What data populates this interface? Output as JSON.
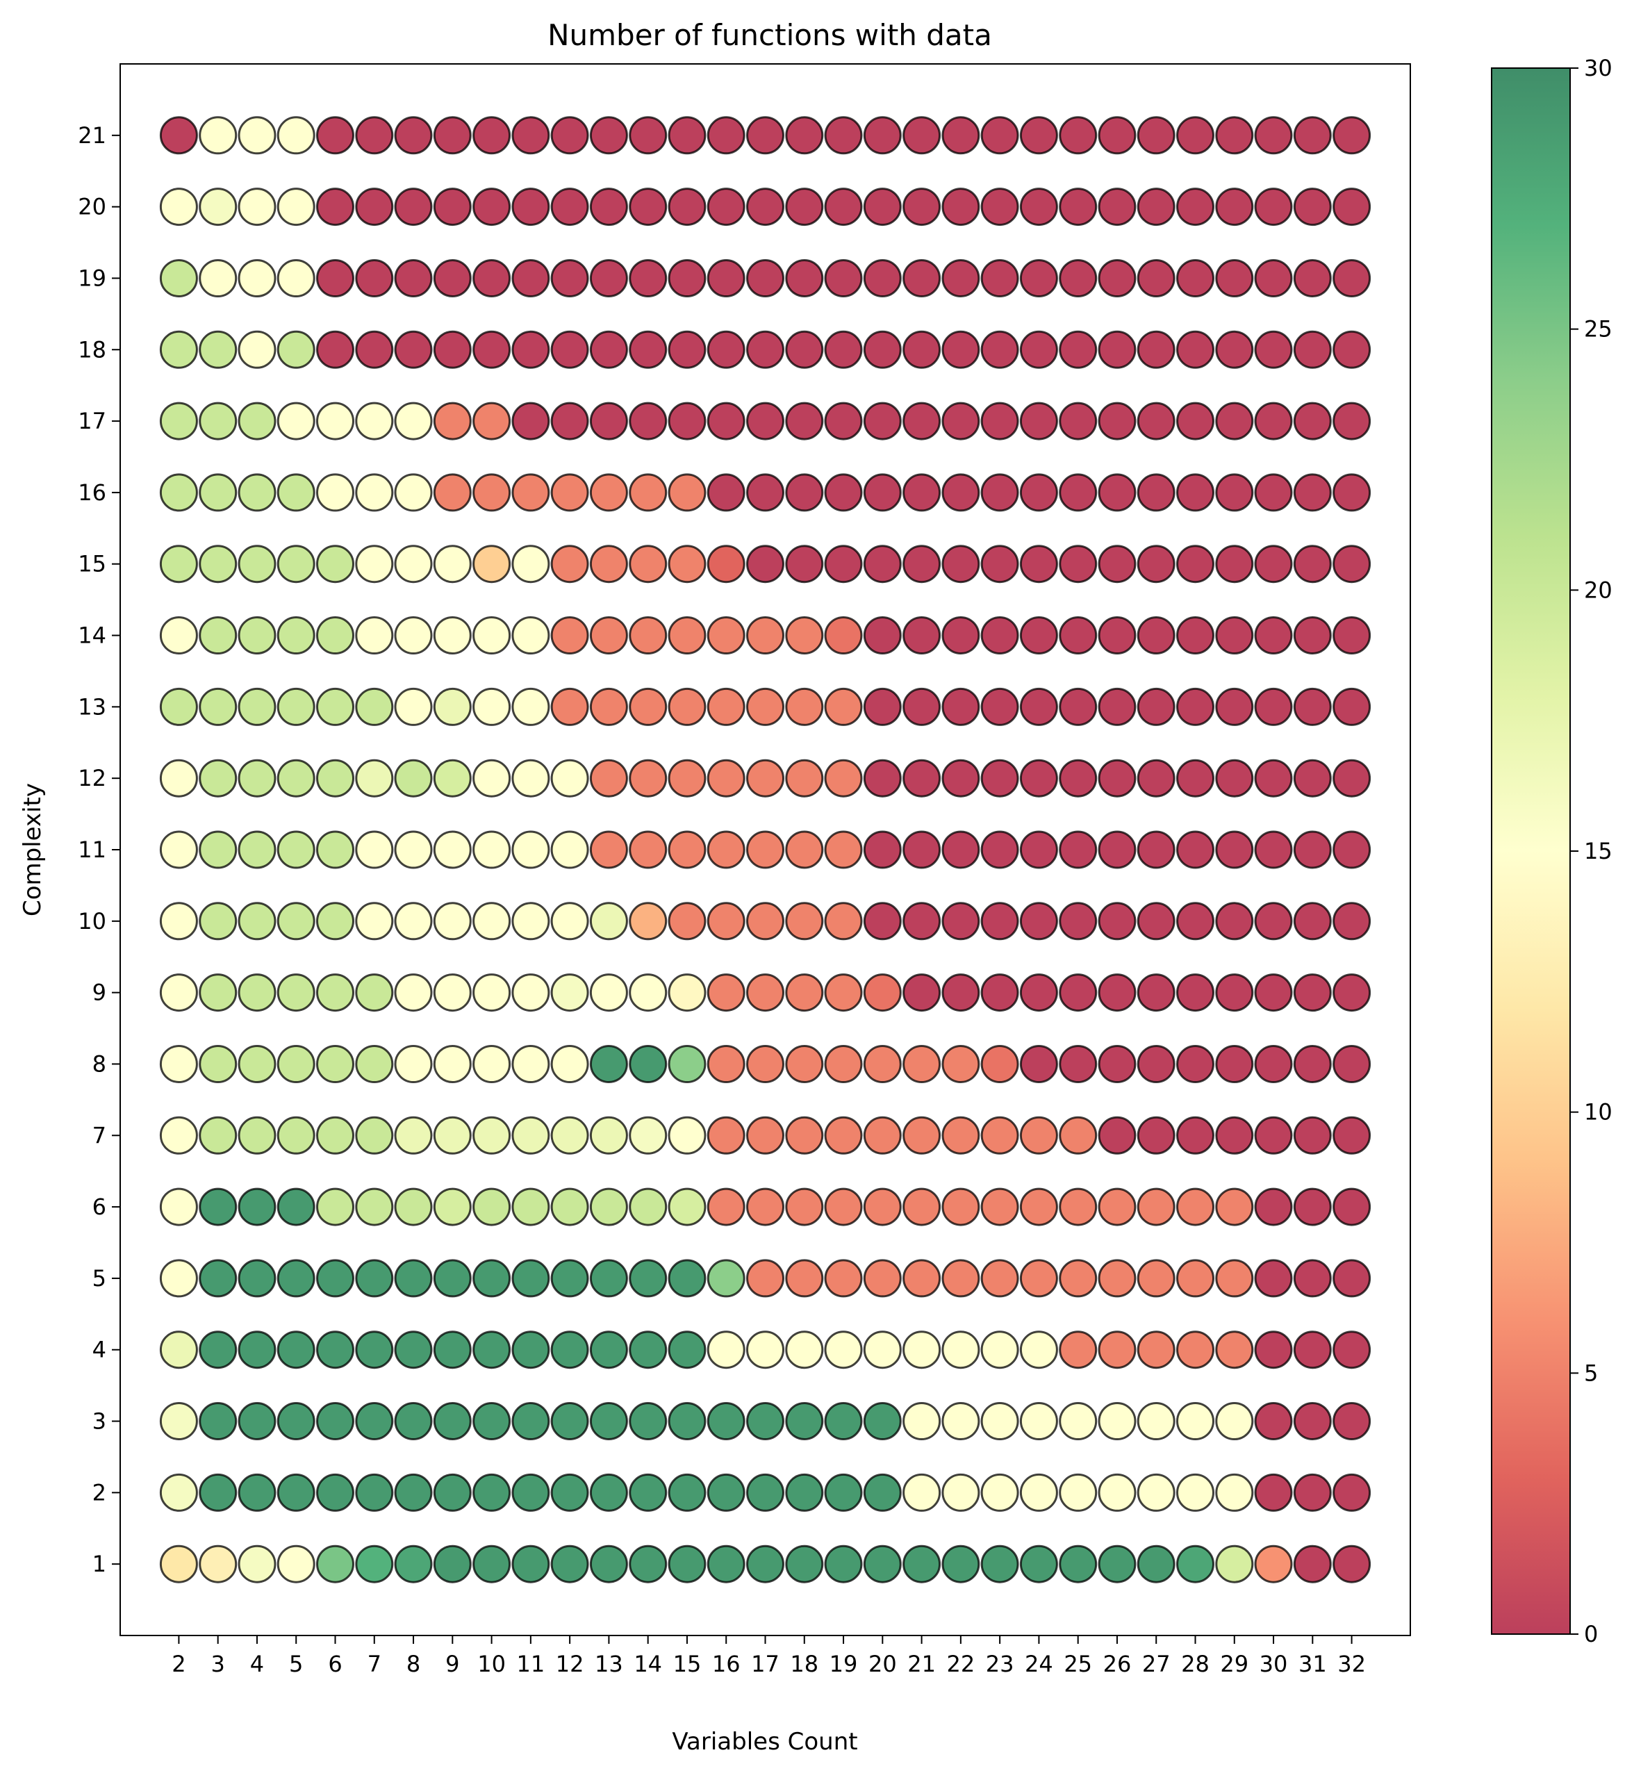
{
  "chart_data": {
    "type": "scatter",
    "title": "Number of functions with data",
    "xlabel": "Variables Count",
    "ylabel": "Complexity",
    "x": [
      2,
      3,
      4,
      5,
      6,
      7,
      8,
      9,
      10,
      11,
      12,
      13,
      14,
      15,
      16,
      17,
      18,
      19,
      20,
      21,
      22,
      23,
      24,
      25,
      26,
      27,
      28,
      29,
      30,
      31,
      32
    ],
    "y": [
      1,
      2,
      3,
      4,
      5,
      6,
      7,
      8,
      9,
      10,
      11,
      12,
      13,
      14,
      15,
      16,
      17,
      18,
      19,
      20,
      21
    ],
    "xlim": [
      0.5,
      33.5
    ],
    "ylim": [
      0,
      22
    ],
    "colormap": "RdYlGn",
    "colorbar": {
      "min": 0,
      "max": 30,
      "ticks": [
        0,
        5,
        10,
        15,
        20,
        25,
        30
      ]
    },
    "grid": false,
    "values": [
      [
        12,
        13,
        16,
        15,
        25,
        27,
        28,
        29,
        29,
        29,
        29,
        29,
        29,
        29,
        29,
        29,
        29,
        29,
        29,
        29,
        29,
        29,
        29,
        29,
        29,
        29,
        28,
        19,
        6,
        0,
        0
      ],
      [
        16,
        29,
        29,
        29,
        29,
        29,
        29,
        29,
        29,
        29,
        29,
        29,
        29,
        29,
        29,
        29,
        29,
        29,
        29,
        15,
        15,
        15,
        15,
        15,
        15,
        15,
        15,
        15,
        0,
        0,
        0
      ],
      [
        16,
        29,
        29,
        29,
        29,
        29,
        29,
        29,
        29,
        29,
        29,
        29,
        29,
        29,
        29,
        29,
        29,
        29,
        29,
        15,
        15,
        15,
        15,
        15,
        15,
        15,
        15,
        15,
        0,
        0,
        0
      ],
      [
        17,
        29,
        29,
        29,
        29,
        29,
        29,
        29,
        29,
        29,
        29,
        29,
        29,
        29,
        15,
        15,
        15,
        15,
        15,
        15,
        15,
        15,
        15,
        5,
        5,
        5,
        5,
        5,
        0,
        0,
        0
      ],
      [
        15,
        29,
        29,
        29,
        29,
        29,
        29,
        29,
        29,
        29,
        29,
        29,
        29,
        29,
        24,
        5,
        5,
        5,
        5,
        5,
        5,
        5,
        5,
        5,
        5,
        5,
        5,
        5,
        0,
        0,
        0
      ],
      [
        15,
        29,
        29,
        29,
        20,
        20,
        20,
        19,
        20,
        20,
        20,
        20,
        20,
        19,
        5,
        5,
        5,
        5,
        5,
        5,
        5,
        5,
        5,
        5,
        5,
        5,
        5,
        5,
        0,
        0,
        0
      ],
      [
        15,
        20,
        20,
        20,
        20,
        20,
        17,
        17,
        17,
        17,
        17,
        17,
        16,
        15,
        5,
        5,
        5,
        5,
        5,
        5,
        5,
        5,
        5,
        5,
        0,
        0,
        0,
        0,
        0,
        0,
        0
      ],
      [
        15,
        20,
        20,
        20,
        20,
        20,
        15,
        15,
        15,
        15,
        15,
        29,
        29,
        24,
        5,
        5,
        5,
        5,
        5,
        5,
        5,
        4,
        0,
        0,
        0,
        0,
        0,
        0,
        0,
        0,
        0
      ],
      [
        15,
        20,
        20,
        20,
        20,
        20,
        15,
        15,
        15,
        15,
        16,
        15,
        15,
        14,
        5,
        5,
        5,
        5,
        4,
        0,
        0,
        0,
        0,
        0,
        0,
        0,
        0,
        0,
        0,
        0,
        0
      ],
      [
        15,
        20,
        20,
        20,
        20,
        15,
        15,
        15,
        15,
        15,
        15,
        17,
        8,
        5,
        5,
        5,
        5,
        5,
        0,
        0,
        0,
        0,
        0,
        0,
        0,
        0,
        0,
        0,
        0,
        0,
        0
      ],
      [
        15,
        20,
        20,
        20,
        20,
        15,
        15,
        15,
        15,
        15,
        15,
        5,
        5,
        5,
        5,
        5,
        5,
        5,
        0,
        0,
        0,
        0,
        0,
        0,
        0,
        0,
        0,
        0,
        0,
        0,
        0
      ],
      [
        15,
        20,
        20,
        20,
        20,
        17,
        20,
        19,
        15,
        15,
        15,
        5,
        5,
        5,
        5,
        5,
        5,
        5,
        0,
        0,
        0,
        0,
        0,
        0,
        0,
        0,
        0,
        0,
        0,
        0,
        0
      ],
      [
        20,
        20,
        20,
        20,
        20,
        20,
        15,
        17,
        15,
        15,
        5,
        5,
        5,
        5,
        5,
        5,
        5,
        5,
        0,
        0,
        0,
        0,
        0,
        0,
        0,
        0,
        0,
        0,
        0,
        0,
        0
      ],
      [
        15,
        20,
        20,
        20,
        20,
        15,
        15,
        15,
        15,
        15,
        5,
        5,
        5,
        5,
        5,
        5,
        5,
        4,
        0,
        0,
        0,
        0,
        0,
        0,
        0,
        0,
        0,
        0,
        0,
        0,
        0
      ],
      [
        20,
        20,
        20,
        20,
        20,
        15,
        15,
        15,
        10,
        15,
        5,
        5,
        5,
        5,
        3,
        0,
        0,
        0,
        0,
        0,
        0,
        0,
        0,
        0,
        0,
        0,
        0,
        0,
        0,
        0,
        0
      ],
      [
        20,
        20,
        20,
        20,
        15,
        15,
        15,
        5,
        5,
        5,
        5,
        5,
        5,
        5,
        0,
        0,
        0,
        0,
        0,
        0,
        0,
        0,
        0,
        0,
        0,
        0,
        0,
        0,
        0,
        0,
        0
      ],
      [
        20,
        20,
        20,
        15,
        15,
        15,
        15,
        5,
        5,
        0,
        0,
        0,
        0,
        0,
        0,
        0,
        0,
        0,
        0,
        0,
        0,
        0,
        0,
        0,
        0,
        0,
        0,
        0,
        0,
        0,
        0
      ],
      [
        20,
        20,
        15,
        20,
        0,
        0,
        0,
        0,
        0,
        0,
        0,
        0,
        0,
        0,
        0,
        0,
        0,
        0,
        0,
        0,
        0,
        0,
        0,
        0,
        0,
        0,
        0,
        0,
        0,
        0,
        0
      ],
      [
        20,
        15,
        15,
        15,
        0,
        0,
        0,
        0,
        0,
        0,
        0,
        0,
        0,
        0,
        0,
        0,
        0,
        0,
        0,
        0,
        0,
        0,
        0,
        0,
        0,
        0,
        0,
        0,
        0,
        0,
        0
      ],
      [
        15,
        16,
        15,
        15,
        0,
        0,
        0,
        0,
        0,
        0,
        0,
        0,
        0,
        0,
        0,
        0,
        0,
        0,
        0,
        0,
        0,
        0,
        0,
        0,
        0,
        0,
        0,
        0,
        0,
        0,
        0
      ],
      [
        0,
        15,
        15,
        15,
        0,
        0,
        0,
        0,
        0,
        0,
        0,
        0,
        0,
        0,
        0,
        0,
        0,
        0,
        0,
        0,
        0,
        0,
        0,
        0,
        0,
        0,
        0,
        0,
        0,
        0,
        0
      ]
    ]
  }
}
